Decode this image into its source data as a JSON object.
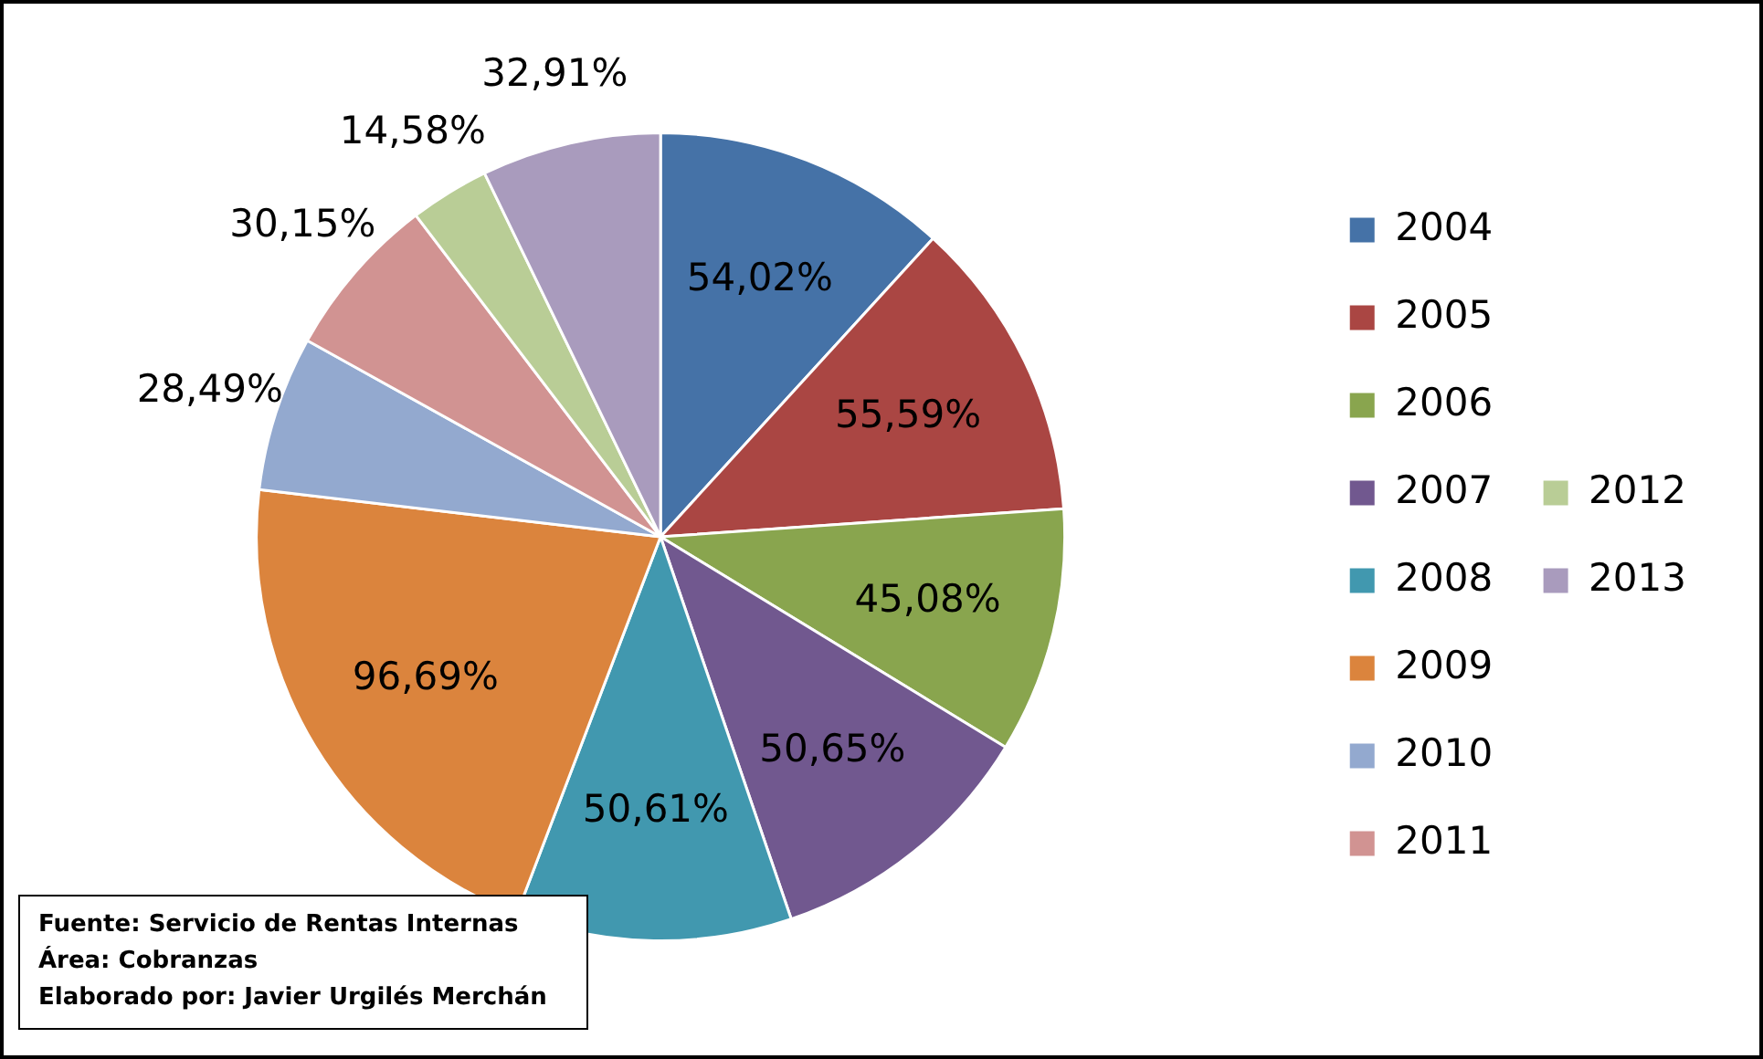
{
  "chart_data": {
    "type": "pie",
    "categories": [
      "2004",
      "2005",
      "2006",
      "2007",
      "2008",
      "2009",
      "2010",
      "2011",
      "2012",
      "2013"
    ],
    "values": [
      54.02,
      55.59,
      45.08,
      50.65,
      50.61,
      96.69,
      28.49,
      30.15,
      14.58,
      32.91
    ],
    "value_labels": [
      "54,02%",
      "55,59%",
      "45,08%",
      "50,65%",
      "50,61%",
      "96,69%",
      "28,49%",
      "30,15%",
      "14,58%",
      "32,91%"
    ],
    "colors": [
      "#4572a7",
      "#aa4643",
      "#89a54e",
      "#71588f",
      "#4198af",
      "#db843d",
      "#93a9cf",
      "#d19392",
      "#b9cd96",
      "#a99bbd"
    ],
    "legend": "right",
    "annotations": [
      "Fuente: Servicio de Rentas Internas",
      "Área: Cobranzas",
      "Elaborado por: Javier Urgilés Merchán"
    ]
  }
}
